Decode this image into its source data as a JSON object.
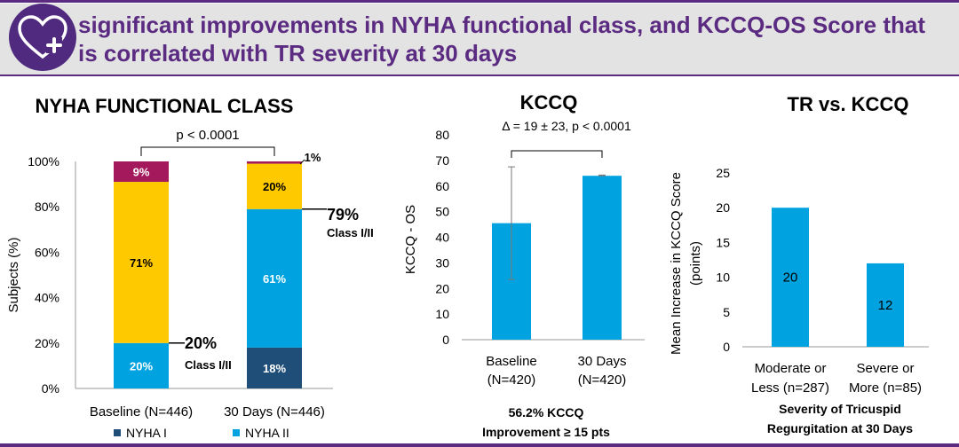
{
  "header": {
    "title": "significant improvements in NYHA functional class, and KCCQ-OS Score that\nis correlated with TR severity at 30 days",
    "logo_icon": "heart-plus-icon"
  },
  "colors": {
    "purple": "#5b2b82",
    "nyha1": "#1f4e79",
    "nyha2": "#00a3e0",
    "nyha3": "#ffc900",
    "nyha4": "#a3195b",
    "bar": "#00a3e0"
  },
  "chart_data": [
    {
      "type": "bar",
      "stacked": true,
      "title": "NYHA FUNCTIONAL CLASS",
      "ylabel": "Subjects (%)",
      "ylim": [
        0,
        100
      ],
      "yticks": [
        "0%",
        "20%",
        "40%",
        "60%",
        "80%",
        "100%"
      ],
      "categories": [
        "Baseline (N=446)",
        "30 Days (N=446)"
      ],
      "series": [
        {
          "values": [
            0,
            18
          ],
          "labels": [
            "",
            "18%"
          ]
        },
        {
          "values": [
            20,
            61
          ],
          "labels": [
            "20%",
            "61%"
          ]
        },
        {
          "values": [
            71,
            20
          ],
          "labels": [
            "71%",
            "20%"
          ]
        },
        {
          "values": [
            9,
            1
          ],
          "labels": [
            "9%",
            "1%"
          ]
        }
      ],
      "annotations": {
        "pvalue": "p < 0.0001",
        "baseline_total": "20%",
        "baseline_class": "Class I/II",
        "day30_total": "79%",
        "day30_class": "Class I/II"
      },
      "legend": [
        {
          "name": "NYHA I",
          "color": "#1f4e79"
        },
        {
          "name": "NYHA II",
          "color": "#00a3e0"
        }
      ]
    },
    {
      "type": "bar",
      "title": "KCCQ",
      "ylabel": "KCCQ - OS",
      "ylim": [
        0,
        80
      ],
      "yticks": [
        "0",
        "10",
        "20",
        "30",
        "40",
        "50",
        "60",
        "70",
        "80"
      ],
      "categories": [
        "Baseline\n(N=420)",
        "30 Days\n(N=420)"
      ],
      "values": [
        45.5,
        64
      ],
      "error_low": [
        23.5,
        64
      ],
      "error_high": [
        67.5,
        64.3
      ],
      "annotation": "Δ = 19 ± 23, p < 0.0001",
      "footnote": "56.2% KCCQ\nImprovement ≥ 15 pts"
    },
    {
      "type": "bar",
      "title": "TR vs. KCCQ",
      "ylabel": "Mean Increase in KCCQ  Score\n(points)",
      "ylim": [
        0,
        25
      ],
      "yticks": [
        "0",
        "5",
        "10",
        "15",
        "20",
        "25"
      ],
      "categories": [
        "Moderate or\nLess (n=287)",
        "Severe or\nMore (n=85)"
      ],
      "values": [
        20,
        12
      ],
      "data_labels": [
        "20",
        "12"
      ],
      "xlabel": "Severity of Tricuspid\nRegurgitation at 30 Days"
    }
  ]
}
